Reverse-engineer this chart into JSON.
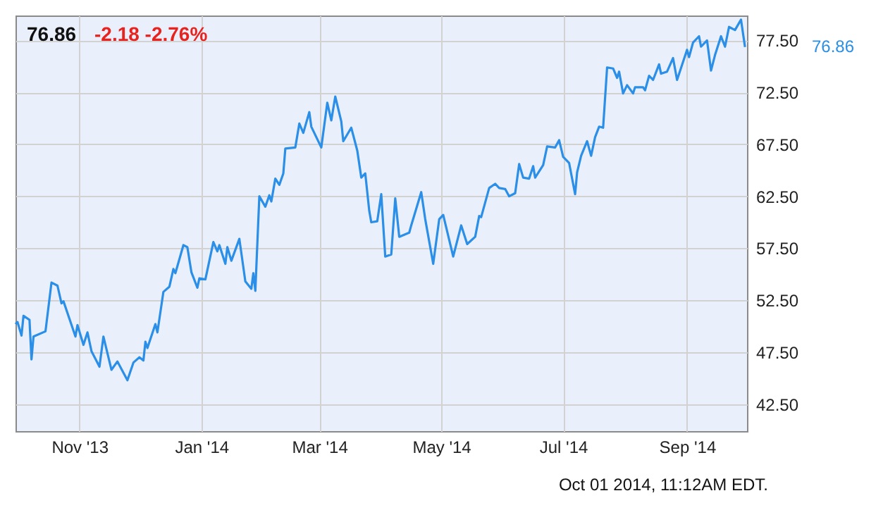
{
  "chart_data": {
    "type": "line",
    "title": "76.86",
    "subtitle": "-2.18  -2.76%",
    "annotations": [
      "76.86",
      "Oct 01 2014, 11:12AM EDT."
    ],
    "x": [
      "2013-09-30",
      "2013-10-01",
      "2013-10-03",
      "2013-10-04",
      "2013-10-07",
      "2013-10-08",
      "2013-10-09",
      "2013-10-15",
      "2013-10-18",
      "2013-10-21",
      "2013-10-23",
      "2013-10-24",
      "2013-10-30",
      "2013-10-31",
      "2013-11-03",
      "2013-11-05",
      "2013-11-07",
      "2013-11-11",
      "2013-11-13",
      "2013-11-17",
      "2013-11-20",
      "2013-11-25",
      "2013-11-28",
      "2013-12-01",
      "2013-12-03",
      "2013-12-04",
      "2013-12-05",
      "2013-12-09",
      "2013-12-10",
      "2013-12-13",
      "2013-12-16",
      "2013-12-18",
      "2013-12-19",
      "2013-12-23",
      "2013-12-25",
      "2013-12-27",
      "2013-12-30",
      "2013-12-31",
      "2014-01-03",
      "2014-01-07",
      "2014-01-09",
      "2014-01-10",
      "2014-01-13",
      "2014-01-14",
      "2014-01-16",
      "2014-01-20",
      "2014-01-23",
      "2014-01-26",
      "2014-01-27",
      "2014-01-28",
      "2014-01-30",
      "2014-02-02",
      "2014-02-04",
      "2014-02-05",
      "2014-02-07",
      "2014-02-09",
      "2014-02-11",
      "2014-02-12",
      "2014-02-17",
      "2014-02-19",
      "2014-02-21",
      "2014-02-24",
      "2014-02-25",
      "2014-03-02",
      "2014-03-05",
      "2014-03-07",
      "2014-03-09",
      "2014-03-12",
      "2014-03-13",
      "2014-03-17",
      "2014-03-20",
      "2014-03-22",
      "2014-03-24",
      "2014-03-26",
      "2014-03-27",
      "2014-03-30",
      "2014-04-01",
      "2014-04-03",
      "2014-04-06",
      "2014-04-08",
      "2014-04-10",
      "2014-04-15",
      "2014-04-16",
      "2014-04-21",
      "2014-04-23",
      "2014-04-27",
      "2014-04-30",
      "2014-05-02",
      "2014-05-07",
      "2014-05-11",
      "2014-05-14",
      "2014-05-18",
      "2014-05-20",
      "2014-05-21",
      "2014-05-25",
      "2014-05-28",
      "2014-05-30",
      "2014-06-02",
      "2014-06-04",
      "2014-06-07",
      "2014-06-09",
      "2014-06-11",
      "2014-06-14",
      "2014-06-16",
      "2014-06-17",
      "2014-06-21",
      "2014-06-23",
      "2014-06-27",
      "2014-06-29",
      "2014-07-01",
      "2014-07-04",
      "2014-07-07",
      "2014-07-08",
      "2014-07-10",
      "2014-07-13",
      "2014-07-15",
      "2014-07-17",
      "2014-07-19",
      "2014-07-21",
      "2014-07-23",
      "2014-07-26",
      "2014-07-28",
      "2014-07-29",
      "2014-07-31",
      "2014-08-02",
      "2014-08-05",
      "2014-08-06",
      "2014-08-10",
      "2014-08-11",
      "2014-08-13",
      "2014-08-15",
      "2014-08-18",
      "2014-08-19",
      "2014-08-22",
      "2014-08-25",
      "2014-08-27",
      "2014-09-01",
      "2014-09-02",
      "2014-09-04",
      "2014-09-07",
      "2014-09-08",
      "2014-09-11",
      "2014-09-13",
      "2014-09-15",
      "2014-09-18",
      "2014-09-20",
      "2014-09-22",
      "2014-09-25",
      "2014-09-28",
      "2014-09-30"
    ],
    "series": [
      {
        "color": "#2b8fe8",
        "values": [
          50.2,
          50.4,
          49.1,
          51.0,
          50.6,
          46.8,
          49.0,
          49.5,
          54.2,
          53.9,
          52.2,
          52.4,
          49.0,
          50.1,
          48.2,
          49.4,
          47.6,
          46.1,
          49.0,
          45.8,
          46.6,
          44.8,
          46.5,
          47.0,
          46.7,
          48.5,
          47.9,
          50.2,
          49.4,
          53.3,
          53.8,
          55.5,
          55.1,
          57.8,
          57.6,
          55.2,
          53.7,
          54.6,
          54.5,
          58.1,
          57.2,
          57.8,
          56.0,
          57.6,
          56.3,
          58.4,
          54.3,
          53.6,
          55.1,
          53.4,
          62.5,
          61.5,
          62.6,
          62.0,
          64.2,
          63.6,
          64.7,
          67.1,
          67.2,
          69.5,
          68.6,
          70.6,
          69.2,
          67.2,
          71.5,
          69.8,
          72.1,
          69.7,
          67.8,
          69.1,
          66.9,
          64.3,
          64.7,
          61.1,
          60.0,
          60.1,
          62.7,
          56.7,
          56.9,
          62.3,
          58.6,
          59.0,
          59.7,
          62.9,
          60.3,
          56.0,
          60.3,
          60.7,
          56.7,
          59.7,
          57.9,
          58.6,
          60.6,
          60.5,
          63.3,
          63.7,
          63.3,
          63.2,
          62.5,
          62.8,
          65.6,
          64.3,
          64.2,
          65.4,
          64.3,
          65.5,
          67.3,
          67.2,
          67.9,
          66.3,
          65.7,
          62.7,
          64.8,
          66.4,
          67.8,
          66.4,
          68.2,
          69.2,
          69.1,
          74.9,
          74.8,
          73.9,
          74.5,
          72.4,
          73.2,
          72.4,
          73.0,
          73.0,
          72.7,
          74.1,
          73.7,
          75.2,
          74.3,
          74.5,
          75.8,
          73.7,
          76.6,
          75.9,
          77.3,
          77.9,
          76.9,
          77.5,
          74.6,
          76.1,
          77.9,
          76.9,
          78.8,
          78.5,
          79.5,
          76.86
        ]
      }
    ],
    "xlim": [
      "2013-09-30",
      "2014-10-01"
    ],
    "xticks": [
      {
        "value": "2013-11-01",
        "label": "Nov '13"
      },
      {
        "value": "2014-01-01",
        "label": "Jan '14"
      },
      {
        "value": "2014-03-01",
        "label": "Mar '14"
      },
      {
        "value": "2014-05-01",
        "label": "May '14"
      },
      {
        "value": "2014-07-01",
        "label": "Jul '14"
      },
      {
        "value": "2014-09-01",
        "label": "Sep '14"
      }
    ],
    "ylim": [
      39.9,
      79.9
    ],
    "yticks": [
      {
        "value": 42.5,
        "label": "42.50"
      },
      {
        "value": 47.5,
        "label": "47.50"
      },
      {
        "value": 52.5,
        "label": "52.50"
      },
      {
        "value": 57.5,
        "label": "57.50"
      },
      {
        "value": 62.5,
        "label": "62.50"
      },
      {
        "value": 67.5,
        "label": "67.50"
      },
      {
        "value": 72.5,
        "label": "72.50"
      },
      {
        "value": 77.5,
        "label": "77.50"
      }
    ],
    "grid": true,
    "marker": "none",
    "line_style": "solid"
  }
}
